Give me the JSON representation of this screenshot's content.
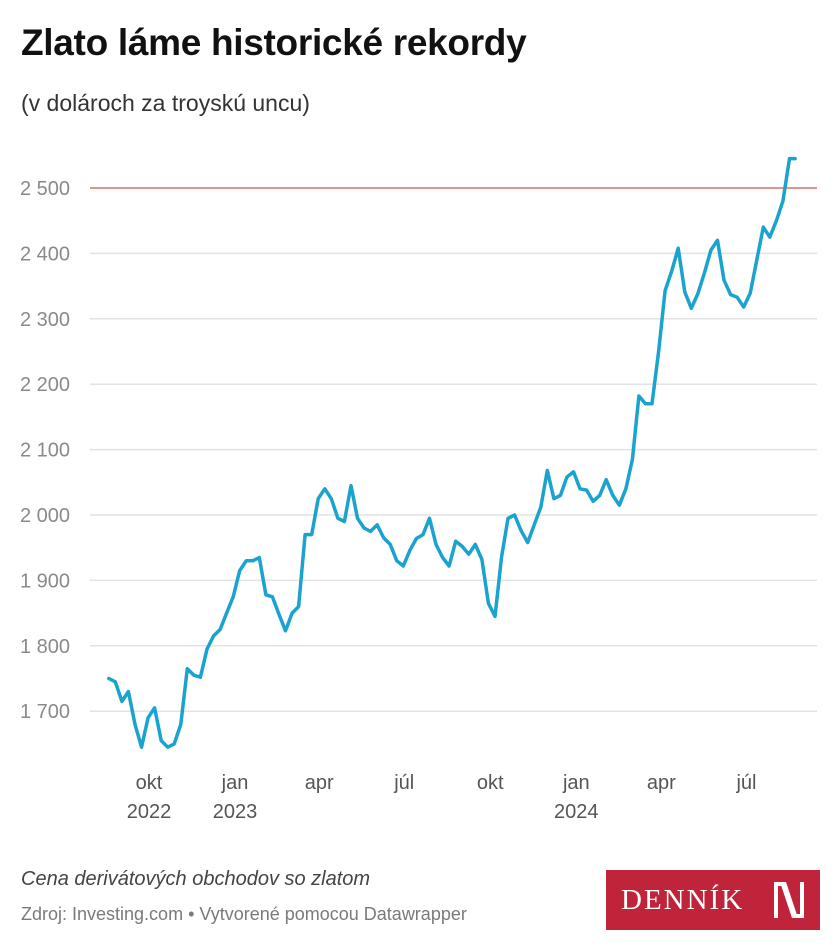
{
  "title": "Zlato láme historické rekordy",
  "subtitle": "(v dolároch za troyskú uncu)",
  "note": "Cena derivátových obchodov so zlatom",
  "source": "Zdroj: Investing.com • Vytvorené pomocou Datawrapper",
  "logo": {
    "text": "DENNÍK N",
    "background": "#c0243a"
  },
  "chart_data": {
    "type": "line",
    "title": "Zlato láme historické rekordy",
    "subtitle": "(v dolároch za troyskú uncu)",
    "line_color": "#1ba3d0",
    "reference_line": {
      "value": 2500,
      "color": "#d9706d"
    },
    "grid": true,
    "ylim": [
      1630,
      2560
    ],
    "xlim": [
      "2022-08-19",
      "2024-08-22"
    ],
    "y_ticks": [
      {
        "value": 1700,
        "label": "1 700"
      },
      {
        "value": 1800,
        "label": "1 800"
      },
      {
        "value": 1900,
        "label": "1 900"
      },
      {
        "value": 2000,
        "label": "2 000"
      },
      {
        "value": 2100,
        "label": "2 100"
      },
      {
        "value": 2200,
        "label": "2 200"
      },
      {
        "value": 2300,
        "label": "2 300"
      },
      {
        "value": 2400,
        "label": "2 400"
      },
      {
        "value": 2500,
        "label": "2 500"
      }
    ],
    "x_ticks": [
      {
        "date": "2022-10-01",
        "label": "okt",
        "year": "2022"
      },
      {
        "date": "2023-01-01",
        "label": "jan",
        "year": "2023"
      },
      {
        "date": "2023-04-01",
        "label": "apr",
        "year": ""
      },
      {
        "date": "2023-07-01",
        "label": "júl",
        "year": ""
      },
      {
        "date": "2023-10-01",
        "label": "okt",
        "year": ""
      },
      {
        "date": "2024-01-01",
        "label": "jan",
        "year": "2024"
      },
      {
        "date": "2024-04-01",
        "label": "apr",
        "year": ""
      },
      {
        "date": "2024-07-01",
        "label": "júl",
        "year": ""
      }
    ],
    "x": [
      "2022-08-19",
      "2022-08-26",
      "2022-09-02",
      "2022-09-09",
      "2022-09-16",
      "2022-09-23",
      "2022-09-30",
      "2022-10-07",
      "2022-10-14",
      "2022-10-21",
      "2022-10-28",
      "2022-11-04",
      "2022-11-11",
      "2022-11-18",
      "2022-11-25",
      "2022-12-02",
      "2022-12-09",
      "2022-12-16",
      "2022-12-23",
      "2022-12-30",
      "2023-01-06",
      "2023-01-13",
      "2023-01-20",
      "2023-01-27",
      "2023-02-03",
      "2023-02-10",
      "2023-02-17",
      "2023-02-24",
      "2023-03-03",
      "2023-03-10",
      "2023-03-17",
      "2023-03-24",
      "2023-03-31",
      "2023-04-07",
      "2023-04-14",
      "2023-04-21",
      "2023-04-28",
      "2023-05-05",
      "2023-05-12",
      "2023-05-19",
      "2023-05-26",
      "2023-06-02",
      "2023-06-09",
      "2023-06-16",
      "2023-06-23",
      "2023-06-30",
      "2023-07-07",
      "2023-07-14",
      "2023-07-21",
      "2023-07-28",
      "2023-08-04",
      "2023-08-11",
      "2023-08-18",
      "2023-08-25",
      "2023-09-01",
      "2023-09-08",
      "2023-09-15",
      "2023-09-22",
      "2023-09-29",
      "2023-10-06",
      "2023-10-13",
      "2023-10-20",
      "2023-10-27",
      "2023-11-03",
      "2023-11-10",
      "2023-11-17",
      "2023-11-24",
      "2023-12-01",
      "2023-12-08",
      "2023-12-15",
      "2023-12-22",
      "2023-12-29",
      "2024-01-05",
      "2024-01-12",
      "2024-01-19",
      "2024-01-26",
      "2024-02-02",
      "2024-02-09",
      "2024-02-16",
      "2024-02-23",
      "2024-03-01",
      "2024-03-08",
      "2024-03-15",
      "2024-03-22",
      "2024-03-29",
      "2024-04-05",
      "2024-04-12",
      "2024-04-19",
      "2024-04-26",
      "2024-05-03",
      "2024-05-10",
      "2024-05-17",
      "2024-05-24",
      "2024-05-31",
      "2024-06-07",
      "2024-06-14",
      "2024-06-21",
      "2024-06-28",
      "2024-07-05",
      "2024-07-12",
      "2024-07-19",
      "2024-07-26",
      "2024-08-02",
      "2024-08-09",
      "2024-08-16",
      "2024-08-22"
    ],
    "values": [
      1750,
      1745,
      1715,
      1730,
      1680,
      1645,
      1690,
      1705,
      1655,
      1645,
      1650,
      1680,
      1765,
      1755,
      1752,
      1795,
      1815,
      1825,
      1850,
      1875,
      1915,
      1930,
      1930,
      1935,
      1878,
      1875,
      1848,
      1823,
      1850,
      1860,
      1970,
      1970,
      2025,
      2040,
      2025,
      1995,
      1990,
      2045,
      1995,
      1980,
      1975,
      1985,
      1965,
      1955,
      1930,
      1922,
      1946,
      1964,
      1970,
      1995,
      1955,
      1935,
      1922,
      1960,
      1952,
      1940,
      1955,
      1932,
      1865,
      1845,
      1935,
      1995,
      2000,
      1976,
      1958,
      1985,
      2012,
      2068,
      2025,
      2030,
      2058,
      2066,
      2040,
      2038,
      2021,
      2030,
      2054,
      2030,
      2015,
      2040,
      2085,
      2182,
      2170,
      2170,
      2250,
      2343,
      2373,
      2408,
      2341,
      2316,
      2338,
      2370,
      2405,
      2420,
      2359,
      2337,
      2333,
      2318,
      2339,
      2390,
      2440,
      2425,
      2450,
      2480,
      2545,
      2545
    ]
  }
}
